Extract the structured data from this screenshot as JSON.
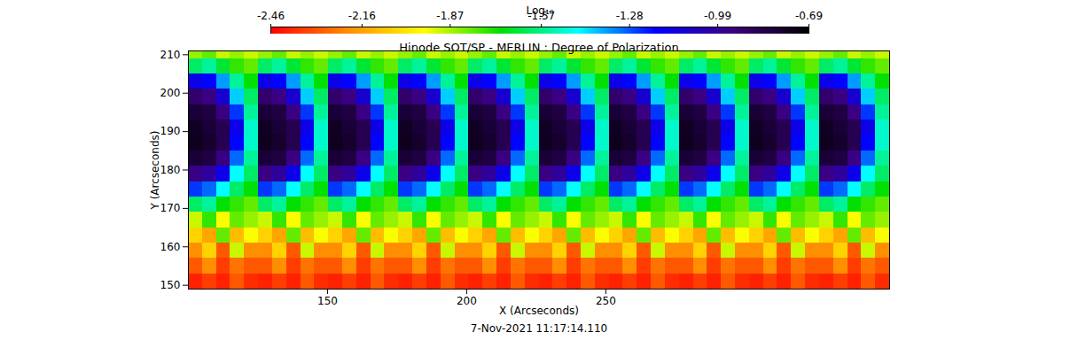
{
  "chart_data": {
    "type": "heatmap",
    "title": "Hinode SOT/SP - MERLIN : Degree of Polarization",
    "caption": "7-Nov-2021 11:17:14.110",
    "x_label": "X (Arcseconds)",
    "y_label": "Y (Arcseconds)",
    "xlim": [
      100,
      352
    ],
    "xticks": [
      150,
      200,
      250
    ],
    "ylim": [
      149,
      211
    ],
    "yticks": [
      150,
      160,
      170,
      180,
      190,
      200,
      210
    ],
    "x_edges": [
      100,
      105.04,
      110.08,
      115.12,
      120.16,
      125.2,
      130.24,
      135.28,
      140.32,
      145.36,
      150.4,
      155.44,
      160.48,
      165.52,
      170.56,
      175.6,
      180.64,
      185.68,
      190.72,
      195.76,
      200.8,
      205.84,
      210.88,
      215.92,
      220.96,
      226,
      231.04,
      236.08,
      241.12,
      246.16,
      251.2,
      256.24,
      261.28,
      266.32,
      271.36,
      276.4,
      281.44,
      286.48,
      291.52,
      296.56,
      301.6,
      306.64,
      311.68,
      316.72,
      321.76,
      326.8,
      331.84,
      336.88,
      341.92,
      346.96,
      352
    ],
    "y_edges": [
      149,
      153,
      157,
      161,
      165,
      169,
      173,
      177,
      181,
      185,
      189,
      193,
      197,
      201,
      205,
      209,
      211
    ],
    "z": [
      [
        -2.4,
        -2.35,
        -2.4,
        -2.3,
        -2.38,
        -2.4,
        -2.35,
        -2.4,
        -2.3,
        -2.38,
        -2.4,
        -2.35,
        -2.4,
        -2.3,
        -2.38,
        -2.4,
        -2.35,
        -2.4,
        -2.3,
        -2.38,
        -2.4,
        -2.35,
        -2.4,
        -2.3,
        -2.38,
        -2.4,
        -2.35,
        -2.4,
        -2.3,
        -2.38,
        -2.4,
        -2.35,
        -2.4,
        -2.3,
        -2.38,
        -2.4,
        -2.35,
        -2.4,
        -2.3,
        -2.38,
        -2.4,
        -2.35,
        -2.4,
        -2.3,
        -2.38,
        -2.4,
        -2.35,
        -2.4,
        -2.3,
        -2.38
      ],
      [
        -2.3,
        -2.2,
        -2.35,
        -2.25,
        -2.3,
        -2.3,
        -2.2,
        -2.35,
        -2.25,
        -2.3,
        -2.3,
        -2.2,
        -2.35,
        -2.25,
        -2.3,
        -2.3,
        -2.2,
        -2.35,
        -2.25,
        -2.3,
        -2.3,
        -2.2,
        -2.35,
        -2.25,
        -2.3,
        -2.3,
        -2.2,
        -2.35,
        -2.25,
        -2.3,
        -2.3,
        -2.2,
        -2.35,
        -2.25,
        -2.3,
        -2.3,
        -2.2,
        -2.35,
        -2.25,
        -2.3,
        -2.3,
        -2.2,
        -2.35,
        -2.25,
        -2.3,
        -2.3,
        -2.2,
        -2.35,
        -2.25,
        -2.3
      ],
      [
        -2.2,
        -2.05,
        -2.3,
        -1.9,
        -2.2,
        -2.2,
        -2.05,
        -2.3,
        -1.9,
        -2.2,
        -2.2,
        -2.05,
        -2.3,
        -1.9,
        -2.2,
        -2.2,
        -2.05,
        -2.3,
        -1.9,
        -2.2,
        -2.2,
        -2.05,
        -2.3,
        -1.9,
        -2.2,
        -2.2,
        -2.05,
        -2.3,
        -1.9,
        -2.2,
        -2.2,
        -2.05,
        -2.3,
        -1.9,
        -2.2,
        -2.2,
        -2.05,
        -2.3,
        -1.9,
        -2.2,
        -2.2,
        -2.05,
        -2.3,
        -1.9,
        -2.2,
        -2.2,
        -2.05,
        -2.3,
        -1.9,
        -2.2
      ],
      [
        -2.05,
        -2.15,
        -1.8,
        -2.1,
        -1.95,
        -2.05,
        -2.15,
        -1.8,
        -2.1,
        -1.95,
        -2.05,
        -2.15,
        -1.8,
        -2.1,
        -1.95,
        -2.05,
        -2.15,
        -1.8,
        -2.1,
        -1.95,
        -2.05,
        -2.15,
        -1.8,
        -2.1,
        -1.95,
        -2.05,
        -2.15,
        -1.8,
        -2.1,
        -1.95,
        -2.05,
        -2.15,
        -1.8,
        -2.1,
        -1.95,
        -2.05,
        -2.15,
        -1.8,
        -2.1,
        -1.95,
        -2.05,
        -2.15,
        -1.8,
        -2.1,
        -1.95,
        -2.05,
        -2.15,
        -1.8,
        -2.1,
        -1.95
      ],
      [
        -1.9,
        -1.75,
        -1.95,
        -1.8,
        -1.85,
        -1.9,
        -1.75,
        -1.95,
        -1.8,
        -1.85,
        -1.9,
        -1.75,
        -1.95,
        -1.8,
        -1.85,
        -1.9,
        -1.75,
        -1.95,
        -1.8,
        -1.85,
        -1.9,
        -1.75,
        -1.95,
        -1.8,
        -1.85,
        -1.9,
        -1.75,
        -1.95,
        -1.8,
        -1.85,
        -1.9,
        -1.75,
        -1.95,
        -1.8,
        -1.85,
        -1.9,
        -1.75,
        -1.95,
        -1.8,
        -1.85,
        -1.9,
        -1.75,
        -1.95,
        -1.8,
        -1.85,
        -1.9,
        -1.75,
        -1.95,
        -1.8,
        -1.85
      ],
      [
        -1.6,
        -1.55,
        -1.7,
        -1.75,
        -1.8,
        -1.6,
        -1.55,
        -1.7,
        -1.75,
        -1.8,
        -1.6,
        -1.55,
        -1.7,
        -1.75,
        -1.8,
        -1.6,
        -1.55,
        -1.7,
        -1.75,
        -1.8,
        -1.6,
        -1.55,
        -1.7,
        -1.75,
        -1.8,
        -1.6,
        -1.55,
        -1.7,
        -1.75,
        -1.8,
        -1.6,
        -1.55,
        -1.7,
        -1.75,
        -1.8,
        -1.6,
        -1.55,
        -1.7,
        -1.75,
        -1.8,
        -1.6,
        -1.55,
        -1.7,
        -1.75,
        -1.8,
        -1.6,
        -1.55,
        -1.7,
        -1.75,
        -1.8
      ],
      [
        -1.25,
        -1.3,
        -1.45,
        -1.6,
        -1.7,
        -1.25,
        -1.3,
        -1.45,
        -1.6,
        -1.7,
        -1.25,
        -1.3,
        -1.45,
        -1.6,
        -1.7,
        -1.25,
        -1.3,
        -1.45,
        -1.6,
        -1.7,
        -1.25,
        -1.3,
        -1.45,
        -1.6,
        -1.7,
        -1.25,
        -1.3,
        -1.45,
        -1.6,
        -1.7,
        -1.25,
        -1.3,
        -1.45,
        -1.6,
        -1.7,
        -1.25,
        -1.3,
        -1.45,
        -1.6,
        -1.7,
        -1.25,
        -1.3,
        -1.45,
        -1.6,
        -1.7,
        -1.25,
        -1.3,
        -1.45,
        -1.6,
        -1.7
      ],
      [
        -0.95,
        -1,
        -1.15,
        -1.45,
        -1.6,
        -0.95,
        -1,
        -1.15,
        -1.45,
        -1.6,
        -0.95,
        -1,
        -1.15,
        -1.45,
        -1.6,
        -0.95,
        -1,
        -1.15,
        -1.45,
        -1.6,
        -0.95,
        -1,
        -1.15,
        -1.45,
        -1.6,
        -0.95,
        -1,
        -1.15,
        -1.45,
        -1.6,
        -0.95,
        -1,
        -1.15,
        -1.45,
        -1.6,
        -0.95,
        -1,
        -1.15,
        -1.45,
        -1.6,
        -0.95,
        -1,
        -1.15,
        -1.45,
        -1.6,
        -0.95,
        -1,
        -1.15,
        -1.45,
        -1.6
      ],
      [
        -0.8,
        -0.82,
        -0.95,
        -1.3,
        -1.55,
        -0.8,
        -0.82,
        -0.95,
        -1.3,
        -1.55,
        -0.8,
        -0.82,
        -0.95,
        -1.3,
        -1.55,
        -0.8,
        -0.82,
        -0.95,
        -1.3,
        -1.55,
        -0.8,
        -0.82,
        -0.95,
        -1.3,
        -1.55,
        -0.8,
        -0.82,
        -0.95,
        -1.3,
        -1.55,
        -0.8,
        -0.82,
        -0.95,
        -1.3,
        -1.55,
        -0.8,
        -0.82,
        -0.95,
        -1.3,
        -1.55,
        -0.8,
        -0.82,
        -0.95,
        -1.3,
        -1.55,
        -0.8,
        -0.82,
        -0.95,
        -1.3,
        -1.55
      ],
      [
        -0.75,
        -0.78,
        -0.85,
        -1.2,
        -1.5,
        -0.75,
        -0.78,
        -0.85,
        -1.2,
        -1.5,
        -0.75,
        -0.78,
        -0.85,
        -1.2,
        -1.5,
        -0.75,
        -0.78,
        -0.85,
        -1.2,
        -1.5,
        -0.75,
        -0.78,
        -0.85,
        -1.2,
        -1.5,
        -0.75,
        -0.78,
        -0.85,
        -1.2,
        -1.5,
        -0.75,
        -0.78,
        -0.85,
        -1.2,
        -1.5,
        -0.75,
        -0.78,
        -0.85,
        -1.2,
        -1.5,
        -0.75,
        -0.78,
        -0.85,
        -1.2,
        -1.5,
        -0.75,
        -0.78,
        -0.85,
        -1.2,
        -1.5
      ],
      [
        -0.76,
        -0.8,
        -0.85,
        -1.15,
        -1.5,
        -0.76,
        -0.8,
        -0.85,
        -1.15,
        -1.5,
        -0.76,
        -0.8,
        -0.85,
        -1.15,
        -1.5,
        -0.76,
        -0.8,
        -0.85,
        -1.15,
        -1.5,
        -0.76,
        -0.8,
        -0.85,
        -1.15,
        -1.5,
        -0.76,
        -0.8,
        -0.85,
        -1.15,
        -1.5,
        -0.76,
        -0.8,
        -0.85,
        -1.15,
        -1.5,
        -0.76,
        -0.8,
        -0.85,
        -1.15,
        -1.5,
        -0.76,
        -0.8,
        -0.85,
        -1.15,
        -1.5,
        -0.76,
        -0.8,
        -0.85,
        -1.15,
        -1.5
      ],
      [
        -0.8,
        -0.82,
        -0.95,
        -1.25,
        -1.55,
        -0.8,
        -0.82,
        -0.95,
        -1.25,
        -1.55,
        -0.8,
        -0.82,
        -0.95,
        -1.25,
        -1.55,
        -0.8,
        -0.82,
        -0.95,
        -1.25,
        -1.55,
        -0.8,
        -0.82,
        -0.95,
        -1.25,
        -1.55,
        -0.8,
        -0.82,
        -0.95,
        -1.25,
        -1.55,
        -0.8,
        -0.82,
        -0.95,
        -1.25,
        -1.55,
        -0.8,
        -0.82,
        -0.95,
        -1.25,
        -1.55,
        -0.8,
        -0.82,
        -0.95,
        -1.25,
        -1.55,
        -0.8,
        -0.82,
        -0.95,
        -1.25,
        -1.55
      ],
      [
        -0.9,
        -0.95,
        -1.1,
        -1.4,
        -1.6,
        -0.9,
        -0.95,
        -1.1,
        -1.4,
        -1.6,
        -0.9,
        -0.95,
        -1.1,
        -1.4,
        -1.6,
        -0.9,
        -0.95,
        -1.1,
        -1.4,
        -1.6,
        -0.9,
        -0.95,
        -1.1,
        -1.4,
        -1.6,
        -0.9,
        -0.95,
        -1.1,
        -1.4,
        -1.6,
        -0.9,
        -0.95,
        -1.1,
        -1.4,
        -1.6,
        -0.9,
        -0.95,
        -1.1,
        -1.4,
        -1.6,
        -0.9,
        -0.95,
        -1.1,
        -1.4,
        -1.6,
        -0.9,
        -0.95,
        -1.1,
        -1.4,
        -1.6
      ],
      [
        -1.15,
        -1.2,
        -1.35,
        -1.55,
        -1.7,
        -1.15,
        -1.2,
        -1.35,
        -1.55,
        -1.7,
        -1.15,
        -1.2,
        -1.35,
        -1.55,
        -1.7,
        -1.15,
        -1.2,
        -1.35,
        -1.55,
        -1.7,
        -1.15,
        -1.2,
        -1.35,
        -1.55,
        -1.7,
        -1.15,
        -1.2,
        -1.35,
        -1.55,
        -1.7,
        -1.15,
        -1.2,
        -1.35,
        -1.55,
        -1.7,
        -1.15,
        -1.2,
        -1.35,
        -1.55,
        -1.7,
        -1.15,
        -1.2,
        -1.35,
        -1.55,
        -1.7,
        -1.15,
        -1.2,
        -1.35,
        -1.55,
        -1.7
      ],
      [
        -1.6,
        -1.55,
        -1.65,
        -1.75,
        -1.8,
        -1.6,
        -1.55,
        -1.65,
        -1.75,
        -1.8,
        -1.6,
        -1.55,
        -1.65,
        -1.75,
        -1.8,
        -1.6,
        -1.55,
        -1.65,
        -1.75,
        -1.8,
        -1.6,
        -1.55,
        -1.65,
        -1.75,
        -1.8,
        -1.6,
        -1.55,
        -1.65,
        -1.75,
        -1.8,
        -1.6,
        -1.55,
        -1.65,
        -1.75,
        -1.8,
        -1.6,
        -1.55,
        -1.65,
        -1.75,
        -1.8,
        -1.6,
        -1.55,
        -1.65,
        -1.75,
        -1.8,
        -1.6,
        -1.55,
        -1.65,
        -1.75,
        -1.8
      ],
      [
        -1.85,
        -1.8,
        -1.9,
        -1.85,
        -1.9,
        -1.85,
        -1.8,
        -1.9,
        -1.85,
        -1.9,
        -1.85,
        -1.8,
        -1.9,
        -1.85,
        -1.9,
        -1.85,
        -1.8,
        -1.9,
        -1.85,
        -1.9,
        -1.85,
        -1.8,
        -1.9,
        -1.85,
        -1.9,
        -1.85,
        -1.8,
        -1.9,
        -1.85,
        -1.9,
        -1.85,
        -1.8,
        -1.9,
        -1.85,
        -1.9,
        -1.85,
        -1.8,
        -1.9,
        -1.85,
        -1.9,
        -1.85,
        -1.8,
        -1.9,
        -1.85,
        -1.9,
        -1.85,
        -1.8,
        -1.9,
        -1.85,
        -1.9
      ]
    ],
    "colorbar": {
      "label": "Log₁₀",
      "range": [
        -2.46,
        -0.69
      ],
      "ticks": [
        -2.46,
        -2.16,
        -1.87,
        -1.57,
        -1.28,
        -0.99,
        -0.69
      ]
    }
  }
}
